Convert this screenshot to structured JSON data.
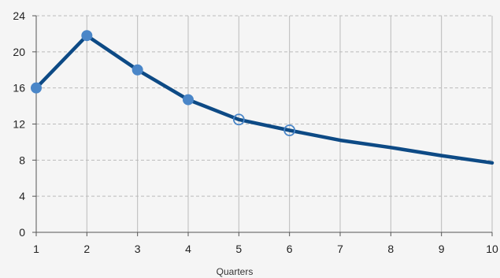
{
  "chart_data": {
    "type": "line",
    "title": "",
    "xlabel": "Quarters",
    "ylabel": "",
    "x": [
      1,
      2,
      3,
      4,
      5,
      6,
      7,
      8,
      9,
      10
    ],
    "xlim": [
      1,
      10
    ],
    "ylim": [
      0,
      24
    ],
    "y_ticks": [
      0,
      4,
      8,
      12,
      16,
      20,
      24
    ],
    "x_ticks": [
      1,
      2,
      3,
      4,
      5,
      6,
      7,
      8,
      9,
      10
    ],
    "grid": {
      "vertical": "solid",
      "horizontal": "dashed"
    },
    "series": [
      {
        "values": [
          16.0,
          21.8,
          18.0,
          14.7,
          12.5,
          11.3,
          10.2,
          9.4,
          8.5,
          7.7
        ],
        "markers": [
          "filled",
          "filled",
          "filled",
          "filled",
          "hollow",
          "hollow",
          "none",
          "none",
          "none",
          "none"
        ],
        "color": "#0d4a85"
      }
    ],
    "colors": {
      "line": "#0d4a85",
      "marker": "#4a86c8",
      "grid": "#bbbbbb",
      "background": "#f5f5f5"
    }
  }
}
